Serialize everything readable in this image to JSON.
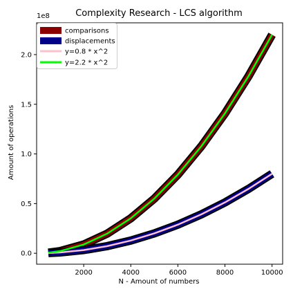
{
  "chart_data": {
    "type": "line",
    "title": "Complexity Research - LCS algorithm",
    "xlabel": "N - Amount of numbers",
    "ylabel": "Amount of operations",
    "y_offset_label": "1e8",
    "y_scale": 100000000,
    "xlim": [
      0,
      10450
    ],
    "ylim": [
      -0.11,
      2.32
    ],
    "xticks": [
      2000,
      4000,
      6000,
      8000,
      10000
    ],
    "xtick_labels": [
      "2000",
      "4000",
      "6000",
      "8000",
      "10000"
    ],
    "yticks": [
      0.0,
      0.5,
      1.0,
      1.5,
      2.0
    ],
    "ytick_labels": [
      "0.0",
      "0.5",
      "1.0",
      "1.5",
      "2.0"
    ],
    "grid": false,
    "legend_position": "top-left",
    "series": [
      {
        "name": "comparisons",
        "color": "#8b0000",
        "style": "thick",
        "x": [
          500,
          1000,
          2000,
          3000,
          4000,
          5000,
          6000,
          7000,
          8000,
          9000,
          10000
        ],
        "y": [
          0.006,
          0.022,
          0.088,
          0.198,
          0.352,
          0.55,
          0.792,
          1.078,
          1.408,
          1.782,
          2.2
        ]
      },
      {
        "name": "displacements",
        "color": "#00008b",
        "style": "thick",
        "x": [
          500,
          1000,
          2000,
          3000,
          4000,
          5000,
          6000,
          7000,
          8000,
          9000,
          10000
        ],
        "y": [
          0.002,
          0.008,
          0.032,
          0.072,
          0.128,
          0.2,
          0.288,
          0.392,
          0.512,
          0.648,
          0.8
        ]
      },
      {
        "name": "y=0.8 * x^2",
        "color": "#ffc0cb",
        "style": "thin",
        "x": [
          500,
          1000,
          2000,
          3000,
          4000,
          5000,
          6000,
          7000,
          8000,
          9000,
          10000
        ],
        "y": [
          0.002,
          0.008,
          0.032,
          0.072,
          0.128,
          0.2,
          0.288,
          0.392,
          0.512,
          0.648,
          0.8
        ]
      },
      {
        "name": "y=2.2 * x^2",
        "color": "#00ff00",
        "style": "thin",
        "x": [
          500,
          1000,
          2000,
          3000,
          4000,
          5000,
          6000,
          7000,
          8000,
          9000,
          10000
        ],
        "y": [
          0.006,
          0.022,
          0.088,
          0.198,
          0.352,
          0.55,
          0.792,
          1.078,
          1.408,
          1.782,
          2.2
        ]
      }
    ]
  }
}
